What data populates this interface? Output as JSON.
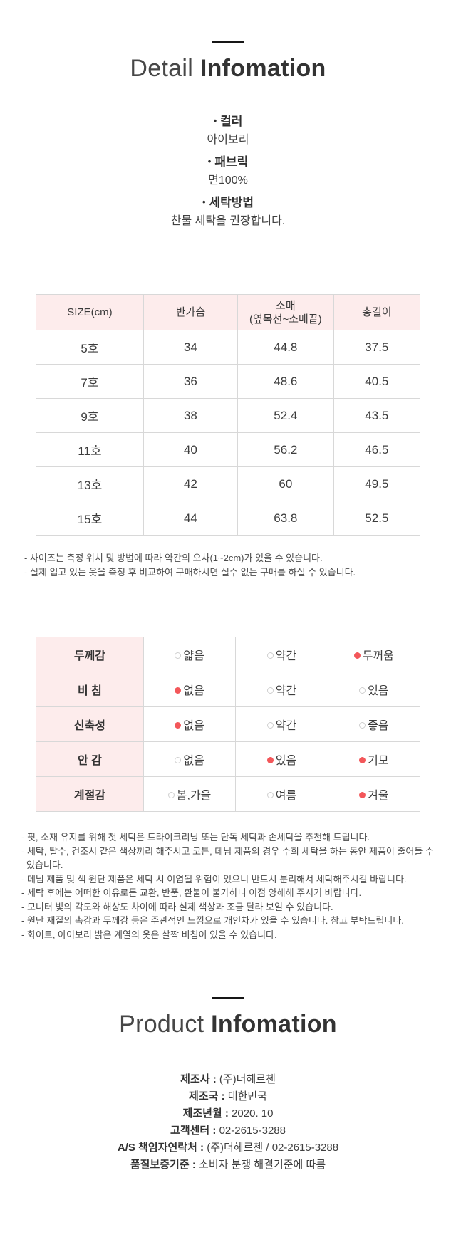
{
  "colors": {
    "accent_pink": "#fdecec",
    "dot_red": "#f3575a",
    "border": "#d8d8d8"
  },
  "detail": {
    "title_light": "Detail",
    "title_bold": "Infomation",
    "bullet": "•",
    "specs": [
      {
        "label": "컬러",
        "value": "아이보리"
      },
      {
        "label": "패브릭",
        "value": "면100%"
      },
      {
        "label": "세탁방법",
        "value": "찬물 세탁을 권장합니다."
      }
    ]
  },
  "size_table": {
    "headers": [
      "SIZE(cm)",
      "반가슴",
      "소매\n(옆목선~소매끝)",
      "총길이"
    ],
    "rows": [
      [
        "5호",
        "34",
        "44.8",
        "37.5"
      ],
      [
        "7호",
        "36",
        "48.6",
        "40.5"
      ],
      [
        "9호",
        "38",
        "52.4",
        "43.5"
      ],
      [
        "11호",
        "40",
        "56.2",
        "46.5"
      ],
      [
        "13호",
        "42",
        "60",
        "49.5"
      ],
      [
        "15호",
        "44",
        "63.8",
        "52.5"
      ]
    ]
  },
  "size_notes": [
    "- 사이즈는 측정 위치 및 방법에 따라 약간의 오차(1~2cm)가 있을 수 있습니다.",
    "- 실제 입고 있는 옷을 측정 후 비교하여 구매하시면 실수 없는 구매를 하실 수 있습니다."
  ],
  "attribute_table": {
    "rows": [
      {
        "label": "두께감",
        "options": [
          {
            "text": "얇음",
            "selected": false
          },
          {
            "text": "약간",
            "selected": false
          },
          {
            "text": "두꺼움",
            "selected": true
          }
        ]
      },
      {
        "label": "비  침",
        "options": [
          {
            "text": "없음",
            "selected": true
          },
          {
            "text": "약간",
            "selected": false
          },
          {
            "text": "있음",
            "selected": false
          }
        ]
      },
      {
        "label": "신축성",
        "options": [
          {
            "text": "없음",
            "selected": true
          },
          {
            "text": "약간",
            "selected": false
          },
          {
            "text": "좋음",
            "selected": false
          }
        ]
      },
      {
        "label": "안  감",
        "options": [
          {
            "text": "없음",
            "selected": false
          },
          {
            "text": "있음",
            "selected": true
          },
          {
            "text": "기모",
            "selected": true
          }
        ]
      },
      {
        "label": "계절감",
        "options": [
          {
            "text": "봄,가을",
            "selected": false
          },
          {
            "text": "여름",
            "selected": false
          },
          {
            "text": "겨울",
            "selected": true
          }
        ]
      }
    ]
  },
  "care_notes": [
    "- 핏, 소재 유지를 위해 첫 세탁은 드라이크리닝 또는 단독 세탁과 손세탁을 추천해 드립니다.",
    "- 세탁, 탈수, 건조시 같은 색상끼리 해주시고 코튼, 데님 제품의 경우 수회 세탁을 하는 동안 제품이 줄어들 수 있습니다.",
    "- 데님 제품 및 색 원단 제품은 세탁 시 이염될 위험이 있으니 반드시 분리해서 세탁해주시길 바랍니다.",
    "- 세탁 후에는 어떠한 이유로든 교환, 반품, 환불이 불가하니 이점 양해해 주시기 바랍니다.",
    "- 모니터 빛의 각도와 해상도 차이에 따라 실제 색상과 조금 달라 보일 수 있습니다.",
    "- 원단 재질의 촉감과 두께감 등은 주관적인 느낌으로 개인차가 있을 수 있습니다. 참고 부탁드립니다.",
    "- 화이트, 아이보리 밝은 계열의 옷은 살짝 비침이 있을 수 있습니다."
  ],
  "product": {
    "title_light": "Product",
    "title_bold": "Infomation",
    "separator": " : ",
    "fields": [
      {
        "label": "제조사",
        "value": "(주)더헤르첸"
      },
      {
        "label": "제조국",
        "value": "대한민국"
      },
      {
        "label": "제조년월",
        "value": "2020. 10"
      },
      {
        "label": "고객센터",
        "value": "02-2615-3288"
      },
      {
        "label": "A/S 책임자연락처",
        "value": "(주)더헤르첸 / 02-2615-3288"
      },
      {
        "label": "품질보증기준",
        "value": "소비자 분쟁 해결기준에 따름"
      }
    ]
  }
}
